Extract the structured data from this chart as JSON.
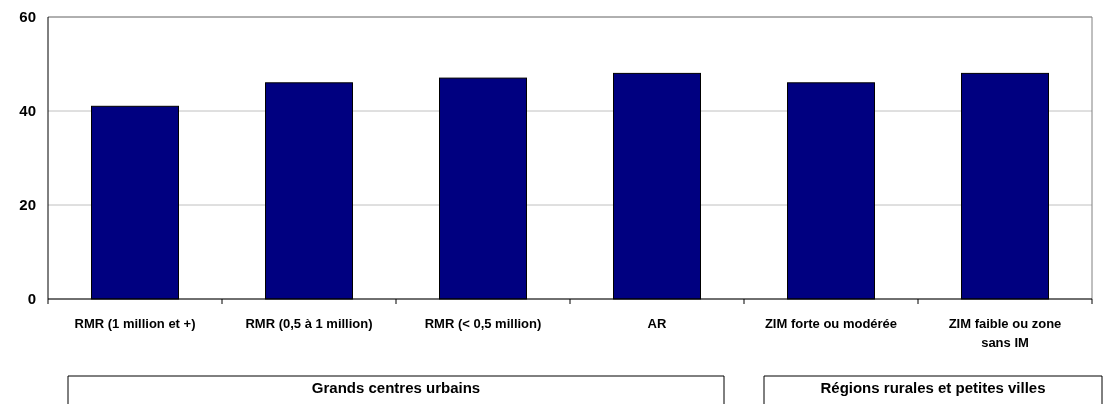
{
  "chart_data": {
    "type": "bar",
    "categories": [
      "RMR (1 million et +)",
      "RMR (0,5 à 1 million)",
      "RMR (< 0,5 million)",
      "AR",
      "ZIM forte ou modérée",
      "ZIM faible ou zone sans IM"
    ],
    "values": [
      41,
      46,
      47,
      48,
      46,
      48
    ],
    "color": "#000080",
    "ylim": [
      0,
      60
    ],
    "yticks": [
      0,
      20,
      40,
      60
    ],
    "grid": "y",
    "annotations": [
      "Grands centres urbains",
      "Régions rurales et petites villes"
    ]
  }
}
